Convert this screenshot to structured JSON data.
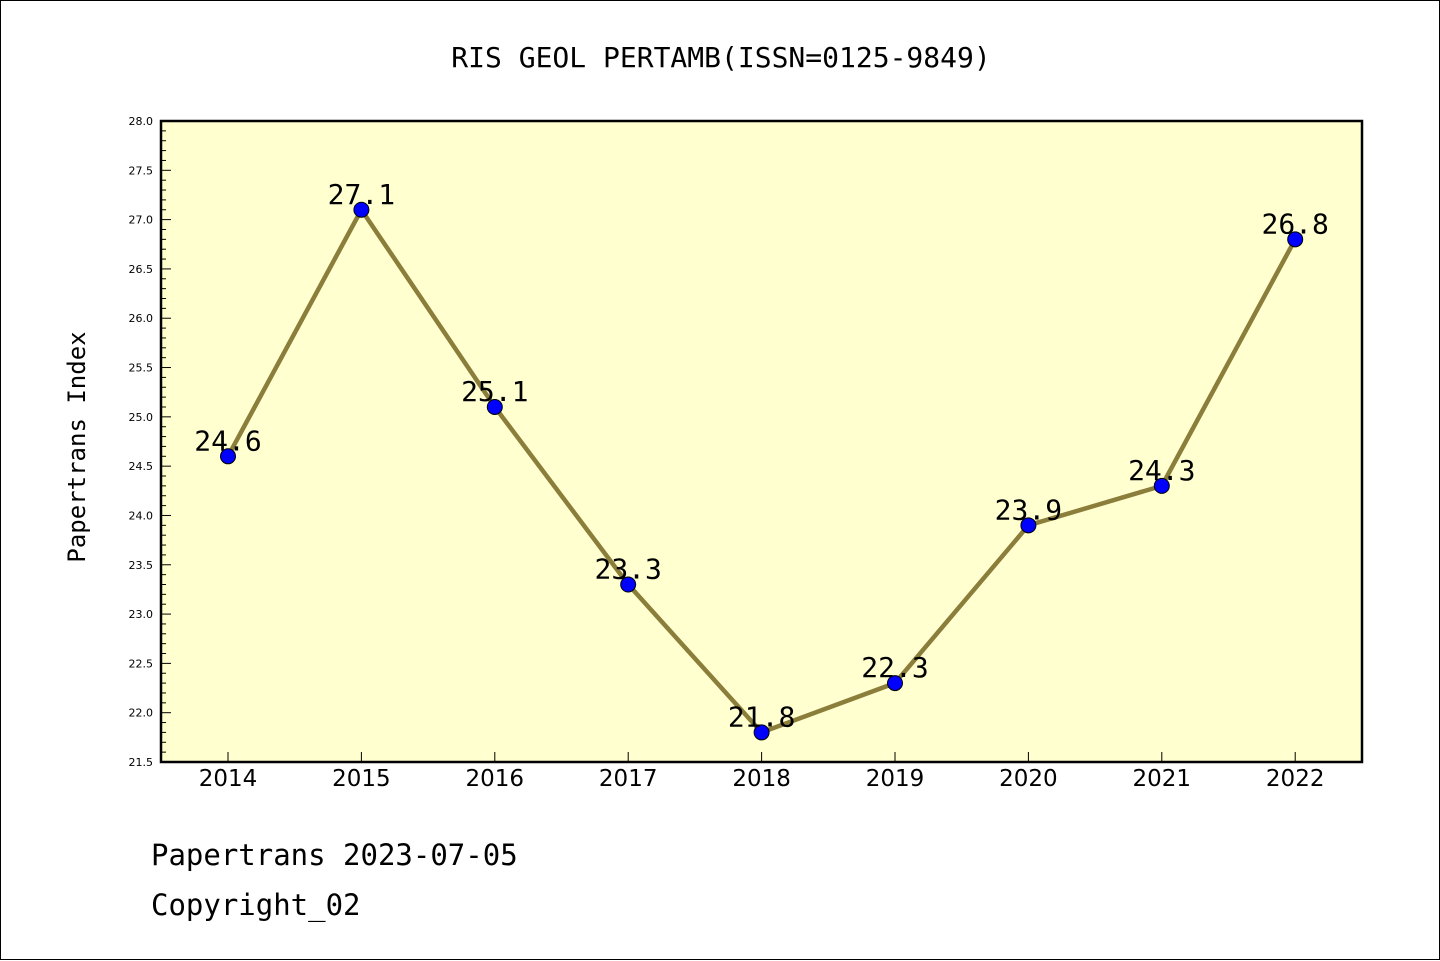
{
  "chart_data": {
    "type": "line",
    "title": "RIS GEOL PERTAMB(ISSN=0125-9849)",
    "ylabel": "Papertrans Index",
    "xlabel": "",
    "categories": [
      "2014",
      "2015",
      "2016",
      "2017",
      "2018",
      "2019",
      "2020",
      "2021",
      "2022"
    ],
    "series": [
      {
        "values": [
          24.6,
          27.1,
          25.1,
          23.3,
          21.8,
          22.3,
          23.9,
          24.3,
          26.8
        ]
      }
    ],
    "data_labels": [
      "24.6",
      "27.1",
      "25.1",
      "23.3",
      "21.8",
      "22.3",
      "23.9",
      "24.3",
      "26.8"
    ],
    "ylim": [
      21.5,
      28.0
    ],
    "yticks": [
      "21.5",
      "22.0",
      "22.5",
      "23.0",
      "23.5",
      "24.0",
      "24.5",
      "25.0",
      "25.5",
      "26.0",
      "26.5",
      "27.0",
      "27.5",
      "28.0"
    ],
    "grid": false,
    "colors": {
      "line": "#8B7D3A",
      "marker": "#0000FF",
      "plot_bg": "#FFFFD0"
    }
  },
  "footer": {
    "line1": "Papertrans 2023-07-05",
    "line2": "Copyright_02"
  }
}
